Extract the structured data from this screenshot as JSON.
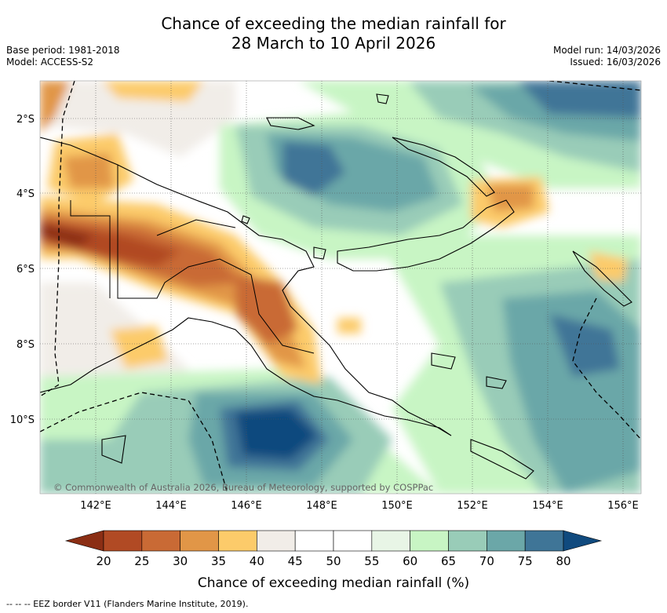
{
  "title": {
    "line1": "Chance of exceeding the median rainfall for",
    "line2": "28 March to 10 April 2026"
  },
  "meta": {
    "base_period": "Base period: 1981-2018",
    "model": "Model: ACCESS-S2",
    "model_run": "Model run: 14/03/2026",
    "issued": "Issued: 16/03/2026"
  },
  "map": {
    "lat_labels": [
      "2°S",
      "4°S",
      "6°S",
      "8°S",
      "10°S"
    ],
    "lon_labels": [
      "142°E",
      "144°E",
      "146°E",
      "148°E",
      "150°E",
      "152°E",
      "154°E",
      "156°E"
    ],
    "copyright": "© Commonwealth of Australia 2026, Bureau of Meteorology, supported by COSPPac"
  },
  "colorbar": {
    "ticks": [
      "20",
      "25",
      "30",
      "35",
      "40",
      "45",
      "50",
      "55",
      "60",
      "65",
      "70",
      "75",
      "80"
    ],
    "colors": [
      "#8b2e14",
      "#b14a24",
      "#c96a35",
      "#e19647",
      "#fccb6a",
      "#f1ede8",
      "#ffffff",
      "#ffffff",
      "#e8f5e6",
      "#c8f5c4",
      "#99ccb8",
      "#6ba7a8",
      "#3f7597",
      "#104a7e"
    ],
    "label": "Chance of exceeding median rainfall (%)"
  },
  "footnote": "--  --  -- EEZ border V11 (Flanders Marine Institute, 2019)."
}
